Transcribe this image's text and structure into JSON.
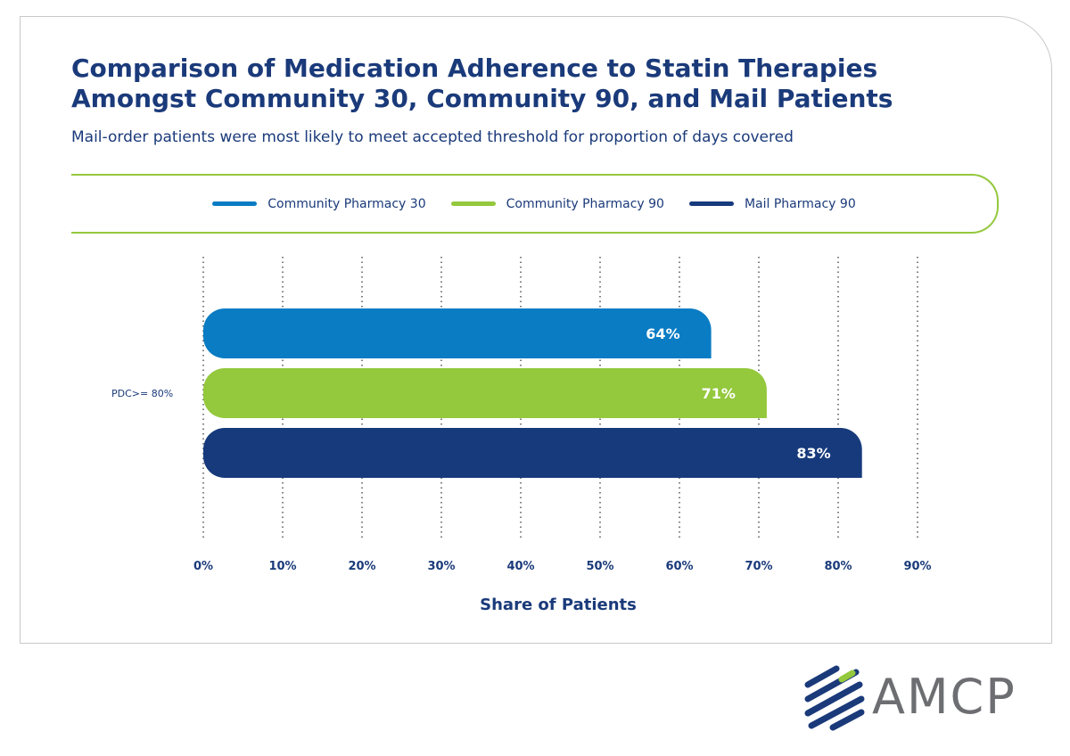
{
  "title_line1": "Comparison of Medication Adherence to Statin Therapies",
  "title_line2": "Amongst Community 30, Community 90, and Mail Patients",
  "subtitle": "Mail-order patients were most likely to meet accepted threshold for proportion of days covered",
  "logo_text": "AMCP",
  "colors": {
    "title": "#1a3a7a",
    "accent_green": "#94c83d",
    "logo_gray": "#6d6e71"
  },
  "chart_data": {
    "type": "bar",
    "orientation": "horizontal",
    "categories": [
      "PDC>= 80%"
    ],
    "series": [
      {
        "name": "Community Pharmacy 30",
        "values": [
          64
        ],
        "label": "64%",
        "color": "#0a7cc4"
      },
      {
        "name": "Community Pharmacy 90",
        "values": [
          71
        ],
        "label": "71%",
        "color": "#94c83d"
      },
      {
        "name": "Mail Pharmacy 90",
        "values": [
          83
        ],
        "label": "83%",
        "color": "#163a7c"
      }
    ],
    "xlabel": "Share of Patients",
    "xlim": [
      0,
      90
    ],
    "xticks": [
      0,
      10,
      20,
      30,
      40,
      50,
      60,
      70,
      80,
      90
    ],
    "xtick_labels": [
      "0%",
      "10%",
      "20%",
      "30%",
      "40%",
      "50%",
      "60%",
      "70%",
      "80%",
      "90%"
    ],
    "grid": "vertical-dotted",
    "legend_position": "top"
  }
}
